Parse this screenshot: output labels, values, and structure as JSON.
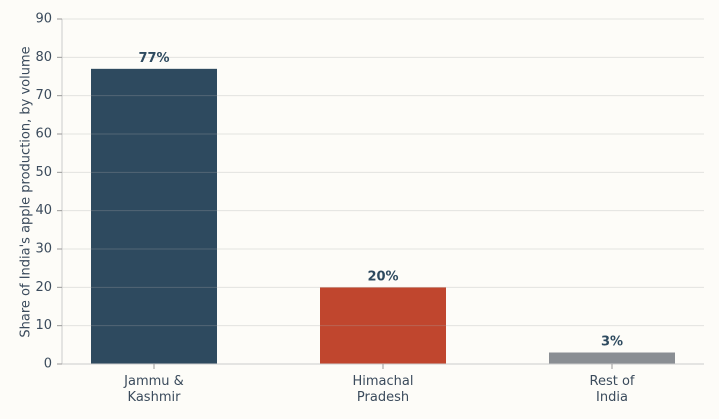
{
  "chart_data": {
    "type": "bar",
    "y_label": "Share of India's apple production, by volume",
    "categories": [
      "Jammu &\nKashmir",
      "Himachal\nPradesh",
      "Rest of\nIndia"
    ],
    "values": [
      77,
      20,
      3
    ],
    "value_labels": [
      "77%",
      "20%",
      "3%"
    ],
    "colors": [
      "#2e4a5f",
      "#c0462e",
      "#8a8e93"
    ],
    "ylim": [
      0,
      90
    ],
    "yticks": [
      0,
      10,
      20,
      30,
      40,
      50,
      60,
      70,
      80,
      90
    ],
    "grid": true
  }
}
